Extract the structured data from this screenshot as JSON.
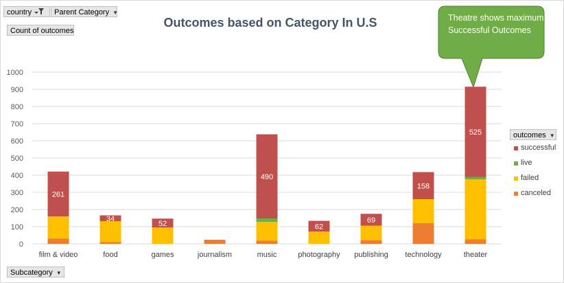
{
  "pivot": {
    "filter_country": "country",
    "filter_parent": "Parent Category",
    "values_field": "Count of outcomes",
    "axis_field": "Subcategory",
    "legend_field": "outcomes"
  },
  "callout": {
    "text": "Theatre shows maximum Successful Outcomes",
    "color": "#70ad47"
  },
  "chart_data": {
    "type": "bar",
    "stacked": true,
    "title": "Outcomes based on Category In U.S",
    "xlabel": "",
    "ylabel": "",
    "ylim": [
      0,
      1000
    ],
    "yticks": [
      0,
      100,
      200,
      300,
      400,
      500,
      600,
      700,
      800,
      900,
      1000
    ],
    "grid": true,
    "legend_position": "right",
    "categories": [
      "film & video",
      "food",
      "games",
      "journalism",
      "music",
      "photography",
      "publishing",
      "technology",
      "theater"
    ],
    "series": [
      {
        "name": "canceled",
        "color": "#ed7d31",
        "values": [
          30,
          10,
          0,
          24,
          18,
          0,
          20,
          120,
          26
        ]
      },
      {
        "name": "failed",
        "color": "#ffc000",
        "values": [
          130,
          122,
          95,
          0,
          110,
          72,
          86,
          140,
          350
        ]
      },
      {
        "name": "live",
        "color": "#70ad47",
        "values": [
          0,
          0,
          0,
          0,
          20,
          0,
          0,
          0,
          14
        ]
      },
      {
        "name": "successful",
        "color": "#c0504d",
        "values": [
          261,
          34,
          52,
          0,
          490,
          62,
          69,
          158,
          525
        ]
      }
    ],
    "data_labels": {
      "series": "successful",
      "labels": [
        "261",
        "34",
        "52",
        "",
        "490",
        "62",
        "69",
        "158",
        "525"
      ]
    },
    "legend_order": [
      "successful",
      "live",
      "failed",
      "canceled"
    ]
  }
}
